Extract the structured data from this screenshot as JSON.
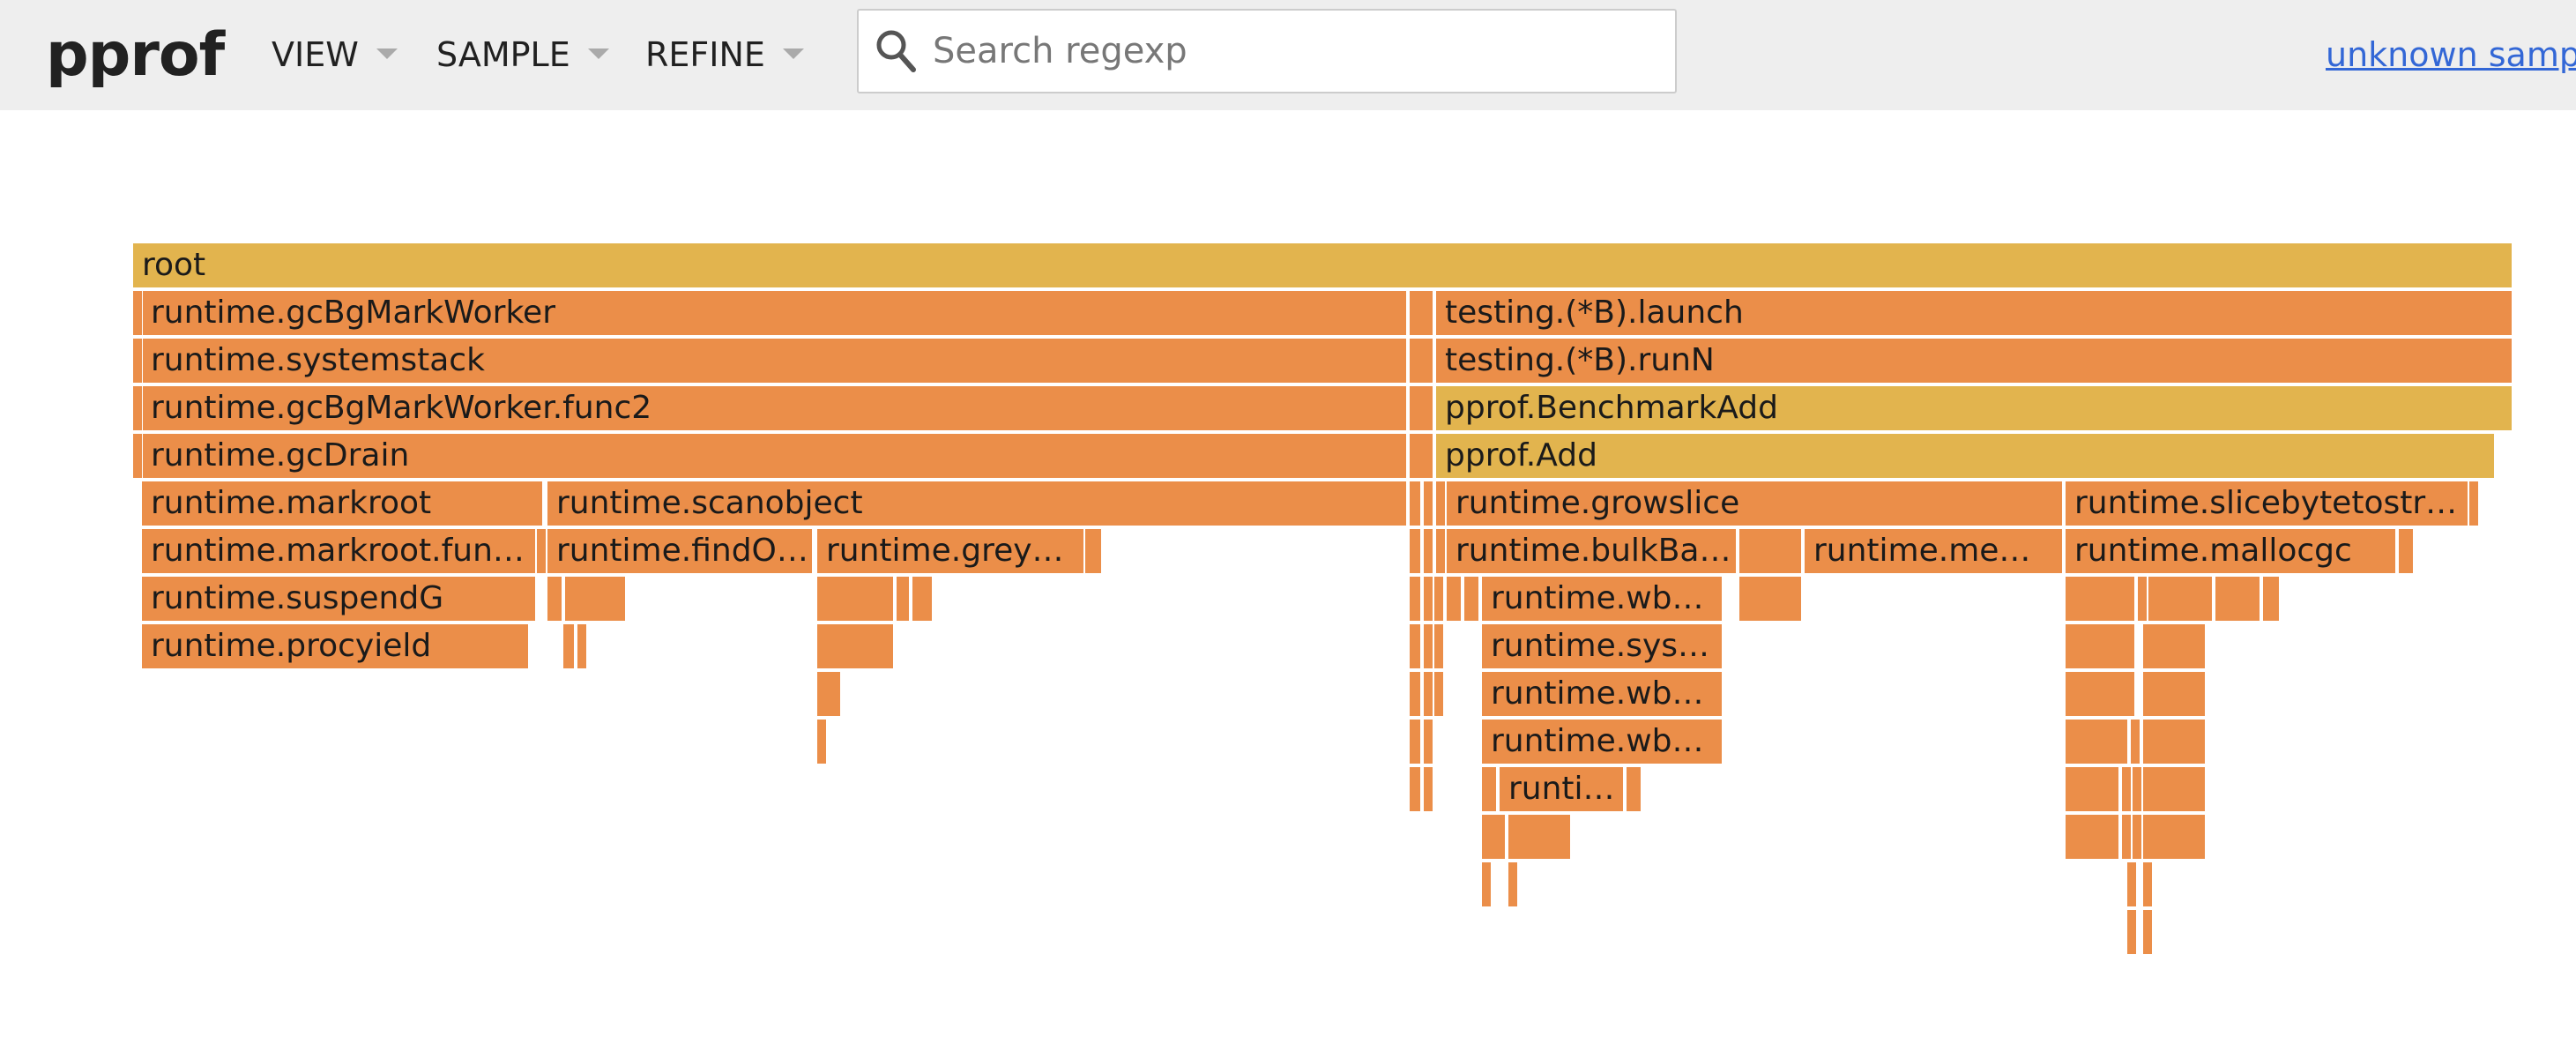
{
  "header": {
    "title": "pprof",
    "menus": [
      {
        "label": "VIEW"
      },
      {
        "label": "SAMPLE"
      },
      {
        "label": "REFINE"
      }
    ],
    "search": {
      "placeholder": "Search regexp",
      "value": ""
    },
    "sample_link": "unknown sample"
  },
  "colors": {
    "frame_orange": "#eb8e49",
    "frame_yellow": "#e2b44e",
    "header_bg": "#eeeeee",
    "link": "#3367d6"
  },
  "flame": {
    "frames": [
      {
        "label": "root",
        "color": "yellow"
      },
      {
        "label": "runtime.gcBgMarkWorker",
        "color": "orange"
      },
      {
        "label": "testing.(*B).launch",
        "color": "orange"
      },
      {
        "label": "runtime.systemstack",
        "color": "orange"
      },
      {
        "label": "testing.(*B).runN",
        "color": "orange"
      },
      {
        "label": "runtime.gcBgMarkWorker.func2",
        "color": "orange"
      },
      {
        "label": "pprof.BenchmarkAdd",
        "color": "yellow"
      },
      {
        "label": "runtime.gcDrain",
        "color": "orange"
      },
      {
        "label": "pprof.Add",
        "color": "yellow"
      },
      {
        "label": "runtime.markroot",
        "color": "orange"
      },
      {
        "label": "runtime.scanobject",
        "color": "orange"
      },
      {
        "label": "runtime.growslice",
        "color": "orange"
      },
      {
        "label": "runtime.slicebytetostr…",
        "color": "orange"
      },
      {
        "label": "runtime.markroot.fun…",
        "color": "orange"
      },
      {
        "label": "runtime.findO…",
        "color": "orange"
      },
      {
        "label": "runtime.grey…",
        "color": "orange"
      },
      {
        "label": "runtime.bulkBa…",
        "color": "orange"
      },
      {
        "label": "runtime.me…",
        "color": "orange"
      },
      {
        "label": "runtime.mallocgc",
        "color": "orange"
      },
      {
        "label": "runtime.suspendG",
        "color": "orange"
      },
      {
        "label": "runtime.wb…",
        "color": "orange"
      },
      {
        "label": "runtime.procyield",
        "color": "orange"
      },
      {
        "label": "runtime.sys…",
        "color": "orange"
      },
      {
        "label": "runtime.wb…",
        "color": "orange"
      },
      {
        "label": "runtime.wb…",
        "color": "orange"
      },
      {
        "label": "runti…",
        "color": "orange"
      }
    ]
  }
}
